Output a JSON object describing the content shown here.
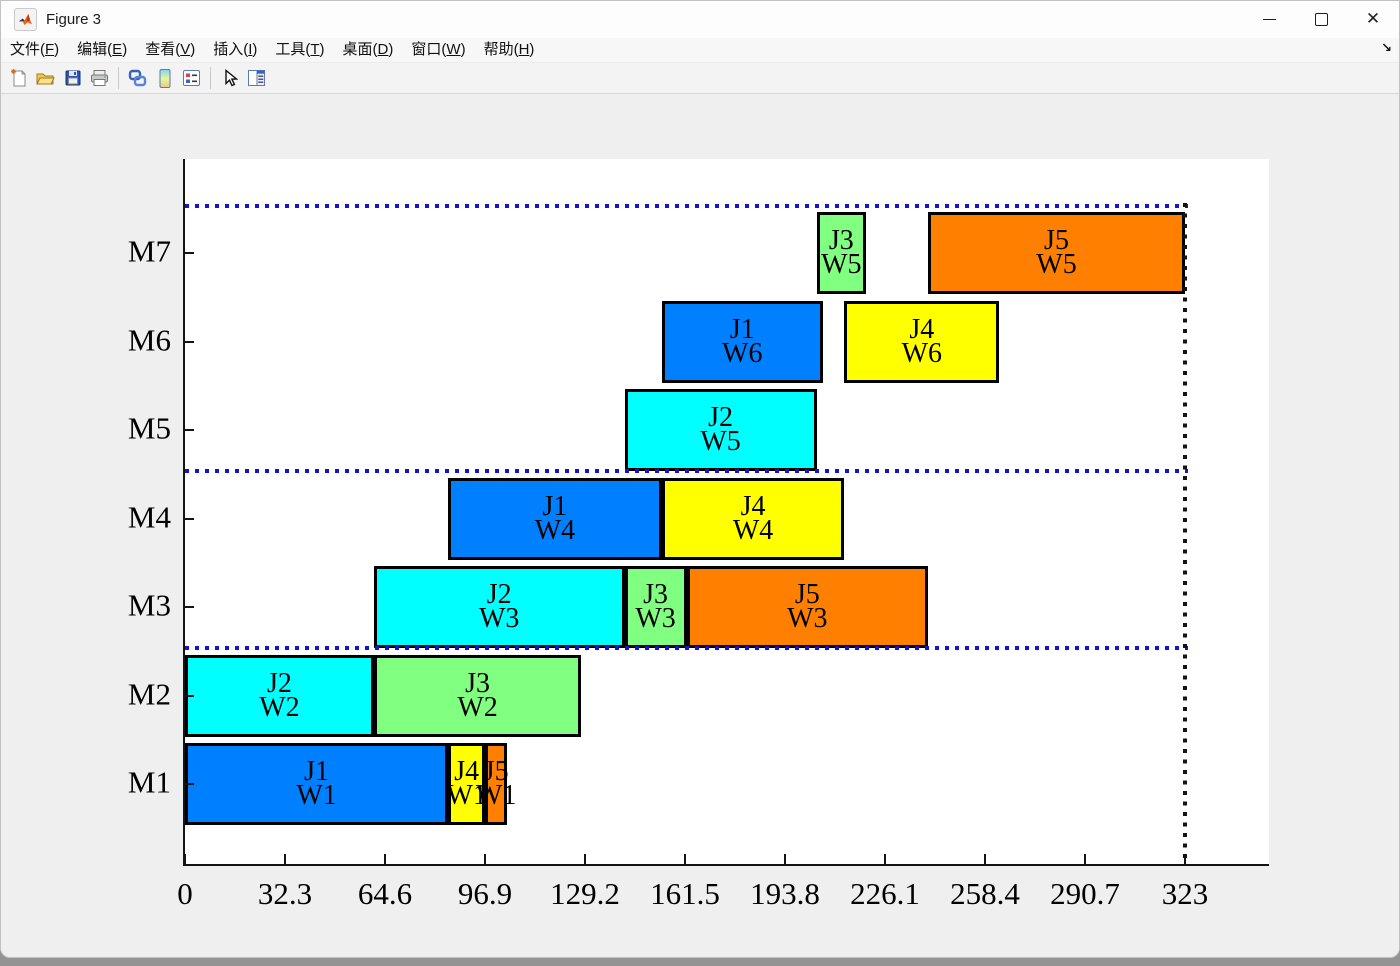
{
  "window": {
    "title": "Figure 3",
    "controls": [
      {
        "name": "minimize-button"
      },
      {
        "name": "maximize-button"
      },
      {
        "name": "close-button"
      }
    ]
  },
  "menubar": {
    "items": [
      {
        "text": "文件",
        "key": "F"
      },
      {
        "text": "编辑",
        "key": "E"
      },
      {
        "text": "查看",
        "key": "V"
      },
      {
        "text": "插入",
        "key": "I"
      },
      {
        "text": "工具",
        "key": "T"
      },
      {
        "text": "桌面",
        "key": "D"
      },
      {
        "text": "窗口",
        "key": "W"
      },
      {
        "text": "帮助",
        "key": "H"
      }
    ],
    "overflow_arrow": "↘"
  },
  "toolbar": {
    "buttons": [
      "new-document",
      "open-folder",
      "save",
      "print",
      "|",
      "link-plot",
      "colorbar",
      "legend",
      "|",
      "edit-arrow",
      "dock-panel"
    ]
  },
  "chart_data": {
    "type": "bar",
    "variant": "gantt",
    "title": "",
    "xlabel": "",
    "ylabel": "",
    "x_ticks": [
      0,
      32.3,
      64.6,
      96.9,
      129.2,
      161.5,
      193.8,
      226.1,
      258.4,
      290.7,
      323
    ],
    "x_axis_max_tick": 323,
    "makespan": 323,
    "machines": [
      "M1",
      "M2",
      "M3",
      "M4",
      "M5",
      "M6",
      "M7"
    ],
    "job_colors": {
      "J1": "#0080FF",
      "J2": "#00FFFF",
      "J3": "#80FF80",
      "J4": "#FFFF00",
      "J5": "#FF8000"
    },
    "operations": [
      {
        "machine": "M1",
        "job": "J1",
        "worker": "W1",
        "start": 0,
        "end": 85
      },
      {
        "machine": "M1",
        "job": "J4",
        "worker": "W1",
        "start": 85,
        "end": 97
      },
      {
        "machine": "M1",
        "job": "J5",
        "worker": "W1",
        "start": 97,
        "end": 104
      },
      {
        "machine": "M2",
        "job": "J2",
        "worker": "W2",
        "start": 0,
        "end": 61
      },
      {
        "machine": "M2",
        "job": "J3",
        "worker": "W2",
        "start": 61,
        "end": 128
      },
      {
        "machine": "M3",
        "job": "J2",
        "worker": "W3",
        "start": 61,
        "end": 142
      },
      {
        "machine": "M3",
        "job": "J3",
        "worker": "W3",
        "start": 142,
        "end": 162
      },
      {
        "machine": "M3",
        "job": "J5",
        "worker": "W3",
        "start": 162,
        "end": 240
      },
      {
        "machine": "M4",
        "job": "J1",
        "worker": "W4",
        "start": 85,
        "end": 154
      },
      {
        "machine": "M4",
        "job": "J4",
        "worker": "W4",
        "start": 154,
        "end": 213
      },
      {
        "machine": "M5",
        "job": "J2",
        "worker": "W5",
        "start": 142,
        "end": 204
      },
      {
        "machine": "M6",
        "job": "J1",
        "worker": "W6",
        "start": 154,
        "end": 206
      },
      {
        "machine": "M6",
        "job": "J4",
        "worker": "W6",
        "start": 213,
        "end": 263
      },
      {
        "machine": "M7",
        "job": "J3",
        "worker": "W5",
        "start": 204,
        "end": 220
      },
      {
        "machine": "M7",
        "job": "J5",
        "worker": "W5",
        "start": 240,
        "end": 323
      }
    ],
    "guide_lines": {
      "horizontal_blue_dotted_machine_levels": [
        7.5,
        4.5,
        2.5
      ],
      "vertical_black_dotted_x": 323,
      "blue_color": "#1414CC",
      "black_color": "#141414"
    },
    "grid": false,
    "legend": false
  }
}
